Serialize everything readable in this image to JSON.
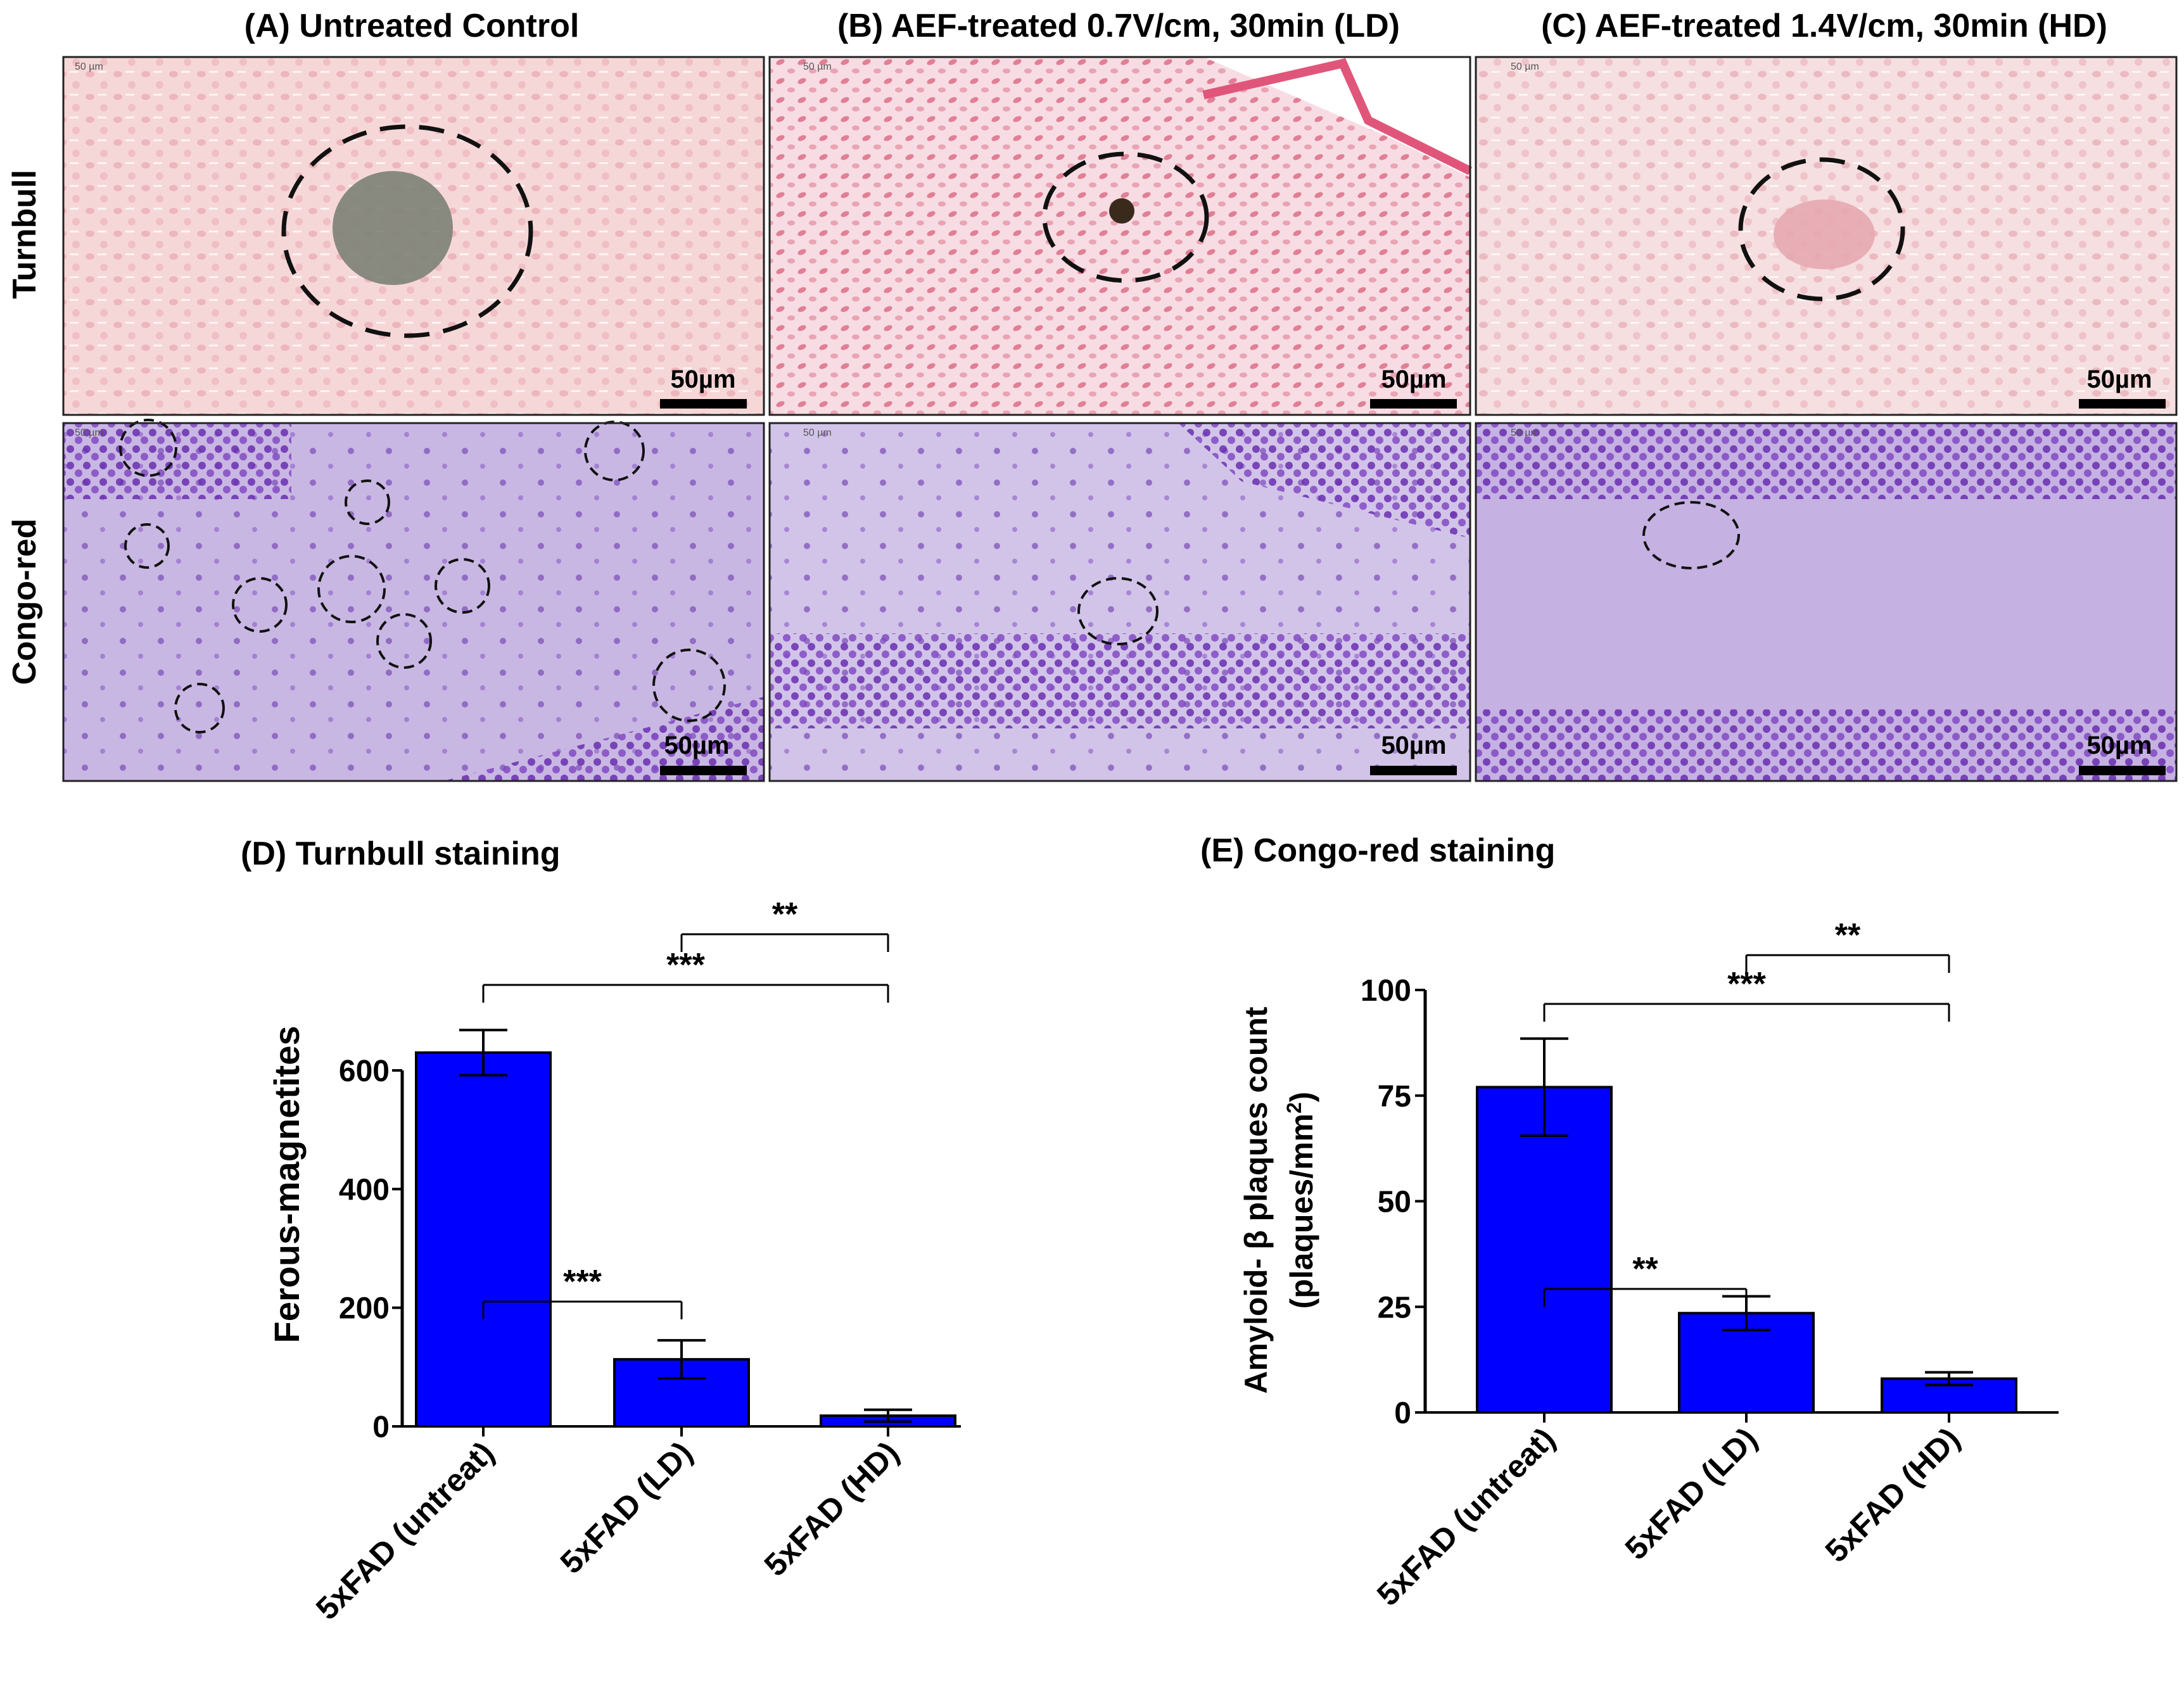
{
  "panels": {
    "col_titles": [
      "(A) Untreated Control",
      "(B) AEF-treated 0.7V/cm, 30min (LD)",
      "(C) AEF-treated 1.4V/cm, 30min (HD)"
    ],
    "row_labels": [
      "Turnbull",
      "Congo-red"
    ],
    "scale_bar": "50µm",
    "micro_scale": "50 µm"
  },
  "chart_data": [
    {
      "type": "bar",
      "title": "(D) Turnbull staining",
      "ylabel": "Ferous-magnetites",
      "xlabel": "",
      "categories": [
        "5xFAD (untreat)",
        "5xFAD (LD)",
        "5xFAD (HD)"
      ],
      "values": [
        630,
        113,
        18
      ],
      "errors": [
        38,
        32,
        10
      ],
      "ylim": [
        0,
        700
      ],
      "yticks": [
        0,
        200,
        400,
        600
      ],
      "bar_color": "#0000ff",
      "significance": [
        {
          "from": 0,
          "to": 1,
          "label": "***"
        },
        {
          "from": 0,
          "to": 2,
          "label": "***"
        },
        {
          "from": 1,
          "to": 2,
          "label": "**"
        }
      ]
    },
    {
      "type": "bar",
      "title": "(E) Congo-red staining",
      "ylabel_line1": "Amyloid- β plaques count",
      "ylabel_line2": "(plaques/mm",
      "ylabel_sup": "2",
      "ylabel_close": ")",
      "xlabel": "",
      "categories": [
        "5xFAD (untreat)",
        "5xFAD (LD)",
        "5xFAD (HD)"
      ],
      "values": [
        77,
        23.5,
        8
      ],
      "errors": [
        11.5,
        4,
        1.5
      ],
      "ylim": [
        0,
        100
      ],
      "yticks": [
        0,
        25,
        50,
        75,
        100
      ],
      "bar_color": "#0000ff",
      "significance": [
        {
          "from": 0,
          "to": 1,
          "label": "**"
        },
        {
          "from": 0,
          "to": 2,
          "label": "***"
        },
        {
          "from": 1,
          "to": 2,
          "label": "**"
        }
      ]
    }
  ]
}
